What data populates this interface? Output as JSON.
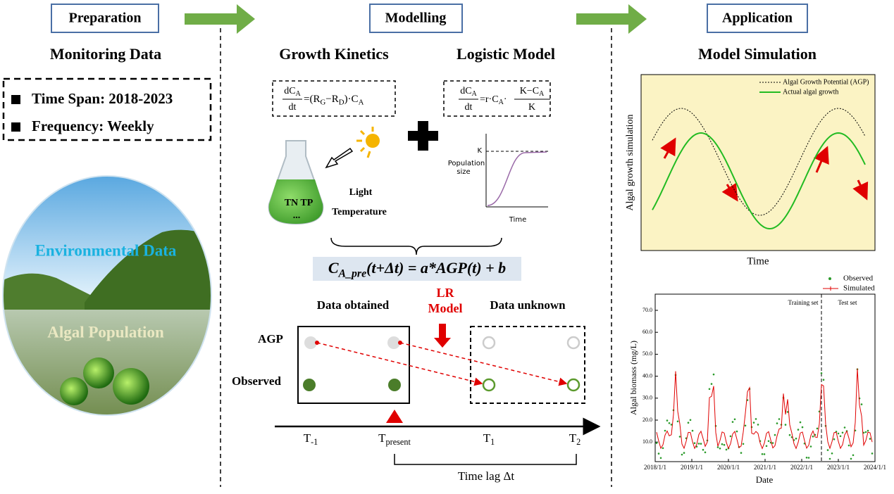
{
  "header": {
    "steps": [
      "Preparation",
      "Modelling",
      "Application"
    ]
  },
  "preparation": {
    "title": "Monitoring Data",
    "items": [
      "Time Span: 2018-2023",
      "Frequency: Weekly"
    ],
    "image_labels": [
      "Environmental Data",
      "Algal Population"
    ]
  },
  "modelling": {
    "kinetics": {
      "title": "Growth Kinetics",
      "num": [
        "dC",
        "A"
      ],
      "den": [
        "dt"
      ],
      "rhs": [
        "=(R",
        "G",
        "−R",
        "D",
        ")·C",
        "A"
      ]
    },
    "logistic": {
      "title": "Logistic Model",
      "num": [
        "dC",
        "A"
      ],
      "den": [
        "dt"
      ],
      "rhs": [
        "=r·C",
        "A",
        "·"
      ],
      "frac_num": [
        "K−C",
        "A"
      ],
      "frac_den": [
        "K"
      ],
      "curve": {
        "k": "K",
        "y": [
          "Population",
          "size"
        ],
        "x": "Time"
      }
    },
    "factors": {
      "flask": [
        "TN  TP",
        "..."
      ],
      "light": "Light",
      "temperature": "Temperature"
    },
    "regression": [
      "C",
      "A_pre",
      "(t+Δt) = a*AGP(t) + b"
    ],
    "lr_model": [
      "LR",
      "Model"
    ],
    "obtained": "Data obtained",
    "unknown": "Data unknown",
    "rows": [
      "AGP",
      "Observed"
    ],
    "times": [
      [
        "T",
        "-1"
      ],
      [
        "T",
        "present"
      ],
      [
        "T",
        "1"
      ],
      [
        "T",
        "2"
      ]
    ],
    "time_lag": "Time lag Δt"
  },
  "application": {
    "title": "Model Simulation",
    "simulation": {
      "legend": [
        "Algal Growth Potential (AGP)",
        "Actual algal growth"
      ],
      "y_label": "Algal growth simulation",
      "x_label": "Time"
    },
    "timeseries": {
      "legend": [
        "Observed",
        "Simulated"
      ],
      "annotations": [
        "Training set",
        "Test set"
      ],
      "y_label": "Algal biomass (mg/L)",
      "x_label": "Date",
      "yticks": [
        "70.0",
        "60.0",
        "50.0",
        "40.0",
        "30.0",
        "20.0",
        "10.0"
      ],
      "xticks": [
        "2018/1/1",
        "2019/1/1",
        "2020/1/1",
        "2021/1/1",
        "2022/1/1",
        "2023/1/1",
        "2024/1/1"
      ]
    }
  }
}
